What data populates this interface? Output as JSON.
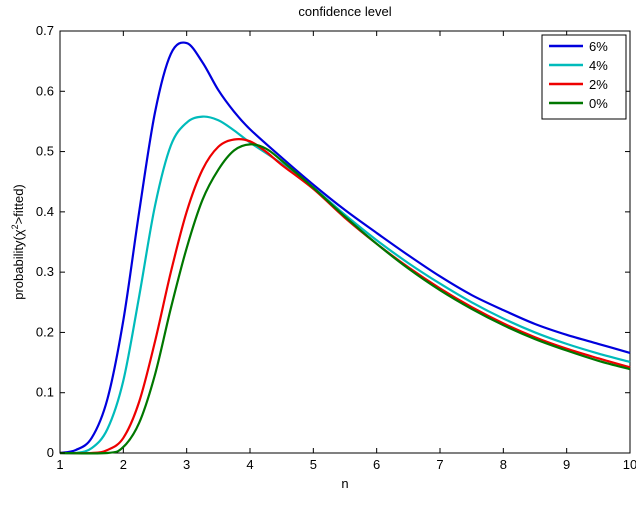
{
  "chart_data": {
    "type": "line",
    "title": "confidence level",
    "xlabel": "n",
    "ylabel_parts": {
      "prefix": "probability(",
      "chi": "χ",
      "sup": "2",
      "suffix": ">fitted)"
    },
    "xlim": [
      1,
      10
    ],
    "ylim": [
      0,
      0.7
    ],
    "x_ticks": [
      1,
      2,
      3,
      4,
      5,
      6,
      7,
      8,
      9,
      10
    ],
    "y_ticks": [
      0,
      0.1,
      0.2,
      0.3,
      0.4,
      0.5,
      0.6,
      0.7
    ],
    "x_tick_labels": [
      "1",
      "2",
      "3",
      "4",
      "5",
      "6",
      "7",
      "8",
      "9",
      "10"
    ],
    "y_tick_labels": [
      "0",
      "0.1",
      "0.2",
      "0.3",
      "0.4",
      "0.5",
      "0.6",
      "0.7"
    ],
    "grid": false,
    "legend_position": "top-right",
    "series": [
      {
        "name": "6%",
        "color": "#0000dd",
        "x": [
          1.0,
          1.25,
          1.5,
          1.75,
          2.0,
          2.25,
          2.5,
          2.75,
          3.0,
          3.25,
          3.5,
          3.75,
          4.0,
          4.5,
          5.0,
          5.5,
          6.0,
          6.5,
          7.0,
          7.5,
          8.0,
          8.5,
          9.0,
          9.5,
          10.0
        ],
        "y": [
          0.0,
          0.005,
          0.025,
          0.09,
          0.22,
          0.4,
          0.565,
          0.662,
          0.68,
          0.648,
          0.602,
          0.566,
          0.537,
          0.49,
          0.445,
          0.403,
          0.365,
          0.328,
          0.293,
          0.262,
          0.237,
          0.214,
          0.196,
          0.181,
          0.166
        ]
      },
      {
        "name": "4%",
        "color": "#00bbbb",
        "x": [
          1.0,
          1.25,
          1.5,
          1.75,
          2.0,
          2.25,
          2.5,
          2.75,
          3.0,
          3.25,
          3.5,
          3.75,
          4.0,
          4.5,
          5.0,
          5.5,
          6.0,
          6.5,
          7.0,
          7.5,
          8.0,
          8.5,
          9.0,
          9.5,
          10.0
        ],
        "y": [
          0.0,
          0.0,
          0.008,
          0.04,
          0.12,
          0.26,
          0.41,
          0.51,
          0.548,
          0.558,
          0.552,
          0.535,
          0.515,
          0.48,
          0.44,
          0.395,
          0.353,
          0.315,
          0.281,
          0.25,
          0.223,
          0.2,
          0.181,
          0.165,
          0.151
        ]
      },
      {
        "name": "2%",
        "color": "#ee0000",
        "x": [
          1.0,
          1.5,
          1.75,
          2.0,
          2.25,
          2.5,
          2.75,
          3.0,
          3.25,
          3.5,
          3.75,
          4.0,
          4.25,
          4.5,
          5.0,
          5.5,
          6.0,
          6.5,
          7.0,
          7.5,
          8.0,
          8.5,
          9.0,
          9.5,
          10.0
        ],
        "y": [
          0.0,
          0.0,
          0.005,
          0.025,
          0.085,
          0.185,
          0.3,
          0.4,
          0.47,
          0.508,
          0.52,
          0.517,
          0.5,
          0.478,
          0.438,
          0.39,
          0.347,
          0.308,
          0.273,
          0.242,
          0.215,
          0.192,
          0.173,
          0.157,
          0.142
        ]
      },
      {
        "name": "0%",
        "color": "#007700",
        "x": [
          1.0,
          1.75,
          2.0,
          2.25,
          2.5,
          2.75,
          3.0,
          3.25,
          3.5,
          3.75,
          4.0,
          4.25,
          4.5,
          5.0,
          5.5,
          6.0,
          6.5,
          7.0,
          7.5,
          8.0,
          8.5,
          9.0,
          9.5,
          10.0
        ],
        "y": [
          0.0,
          0.0,
          0.01,
          0.05,
          0.13,
          0.24,
          0.34,
          0.42,
          0.47,
          0.502,
          0.512,
          0.505,
          0.485,
          0.44,
          0.392,
          0.347,
          0.306,
          0.27,
          0.239,
          0.212,
          0.189,
          0.17,
          0.153,
          0.139
        ]
      }
    ]
  }
}
